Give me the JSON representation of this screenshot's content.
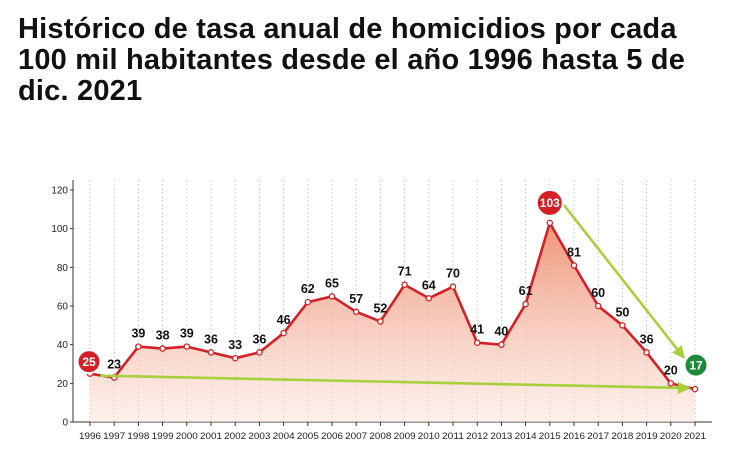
{
  "title": "Histórico de tasa anual de homicidios por cada 100 mil habitantes desde el año 1996 hasta 5 de dic. 2021",
  "chart_data": {
    "type": "area",
    "title": "Histórico de tasa anual de homicidios por cada 100 mil habitantes desde el año 1996 hasta 5 de dic. 2021",
    "xlabel": "",
    "ylabel": "",
    "ylim": [
      0,
      120
    ],
    "yticks": [
      "0",
      "20",
      "40",
      "60",
      "80",
      "100",
      "120"
    ],
    "grid": "vertical-dotted",
    "categories": [
      "1996",
      "1997",
      "1998",
      "1999",
      "2000",
      "2001",
      "2002",
      "2003",
      "2004",
      "2005",
      "2006",
      "2007",
      "2008",
      "2009",
      "2010",
      "2011",
      "2012",
      "2013",
      "2014",
      "2015",
      "2016",
      "2017",
      "2018",
      "2019",
      "2020",
      "2021"
    ],
    "values": [
      25,
      23,
      39,
      38,
      39,
      36,
      33,
      36,
      46,
      62,
      65,
      57,
      52,
      71,
      64,
      70,
      41,
      40,
      61,
      103,
      81,
      60,
      50,
      36,
      20,
      17
    ],
    "line_color": "#d32026",
    "fill_color": "#f3a58e",
    "badges": [
      {
        "label": "25",
        "year": "1996",
        "color": "#d32026"
      },
      {
        "label": "103",
        "year": "2015",
        "color": "#d32026"
      },
      {
        "label": "17",
        "year": "2021",
        "color": "#1f8a3c"
      }
    ],
    "trend_arrows": [
      {
        "from": "1996",
        "to": "2021",
        "color": "#a8cf3c"
      },
      {
        "from": "2015",
        "to": "2021",
        "color": "#a8cf3c"
      }
    ]
  }
}
